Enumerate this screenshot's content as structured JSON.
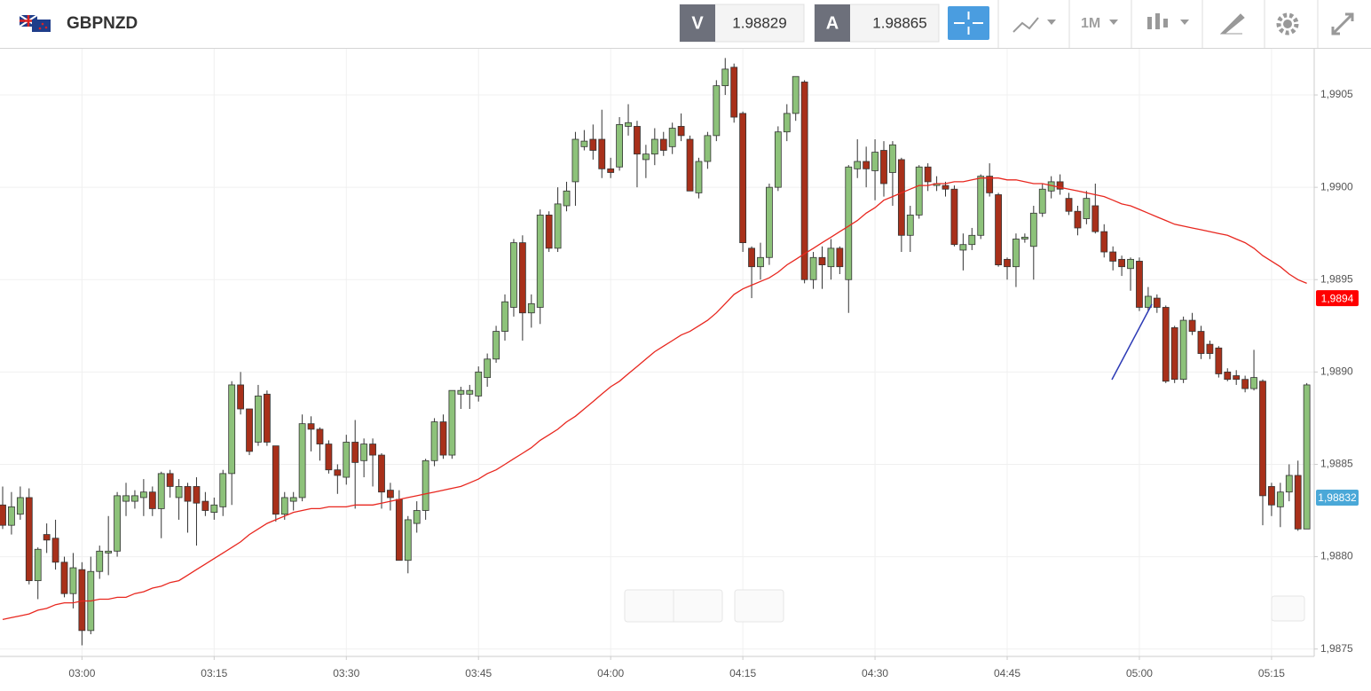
{
  "header": {
    "symbol": "GBPNZD",
    "bid_label": "V",
    "bid": 1.98829,
    "ask_label": "A",
    "ask": 1.98865,
    "timeframe": "1M"
  },
  "chart_data": {
    "type": "candlestick",
    "up_color": "#8dc27a",
    "down_color": "#a8301a",
    "grid": true,
    "ylim": [
      1.98746,
      1.99075
    ],
    "yticks": [
      {
        "value": 1.9875,
        "label": "1,9875"
      },
      {
        "value": 1.988,
        "label": "1,9880"
      },
      {
        "value": 1.9885,
        "label": "1,9885"
      },
      {
        "value": 1.989,
        "label": "1,9890"
      },
      {
        "value": 1.9895,
        "label": "1,9895"
      },
      {
        "value": 1.99,
        "label": "1,9900"
      },
      {
        "value": 1.9905,
        "label": "1,9905"
      }
    ],
    "categories": [
      null,
      null,
      null,
      null,
      null,
      null,
      null,
      null,
      null,
      "03:00",
      null,
      null,
      null,
      null,
      null,
      null,
      null,
      null,
      null,
      null,
      null,
      null,
      null,
      null,
      "03:15",
      null,
      null,
      null,
      null,
      null,
      null,
      null,
      null,
      null,
      null,
      null,
      null,
      null,
      null,
      "03:30",
      null,
      null,
      null,
      null,
      null,
      null,
      null,
      null,
      null,
      null,
      null,
      null,
      null,
      null,
      "03:45",
      null,
      null,
      null,
      null,
      null,
      null,
      null,
      null,
      null,
      null,
      null,
      null,
      null,
      null,
      "04:00",
      null,
      null,
      null,
      null,
      null,
      null,
      null,
      null,
      null,
      null,
      null,
      null,
      null,
      null,
      "04:15",
      null,
      null,
      null,
      null,
      null,
      null,
      null,
      null,
      null,
      null,
      null,
      null,
      null,
      null,
      "04:30",
      null,
      null,
      null,
      null,
      null,
      null,
      null,
      null,
      null,
      null,
      null,
      null,
      null,
      null,
      "04:45",
      null,
      null,
      null,
      null,
      null,
      null,
      null,
      null,
      null,
      null,
      null,
      null,
      null,
      null,
      "05:00",
      null,
      null,
      null,
      null,
      null,
      null,
      null,
      null,
      null,
      null,
      null,
      null,
      null,
      null,
      "05:15",
      null,
      null,
      null,
      null
    ],
    "open": [
      1.98828,
      1.98817,
      1.98823,
      1.98832,
      1.98787,
      1.98812,
      1.9881,
      1.98797,
      1.9878,
      1.98793,
      1.9876,
      1.98792,
      1.98802,
      1.98803,
      1.9883,
      1.9883,
      1.98832,
      1.98835,
      1.98826,
      1.98845,
      1.98832,
      1.98838,
      1.98838,
      1.9883,
      1.98824,
      1.98827,
      1.98845,
      1.98893,
      1.9888,
      1.98862,
      1.98888,
      1.9886,
      1.98823,
      1.9883,
      1.98832,
      1.98872,
      1.98869,
      1.98861,
      1.98847,
      1.98843,
      1.98862,
      1.98852,
      1.98861,
      1.98855,
      1.98836,
      1.98831,
      1.98798,
      1.98818,
      1.98825,
      1.98852,
      1.98873,
      1.98855,
      1.98888,
      1.98888,
      1.98887,
      1.98897,
      1.98907,
      1.98922,
      1.98935,
      1.9897,
      1.98932,
      1.98935,
      1.98985,
      1.98967,
      1.9899,
      1.99003,
      1.99022,
      1.99026,
      1.99026,
      1.9901,
      1.99011,
      1.99033,
      1.99033,
      1.99015,
      1.99018,
      1.99026,
      1.99022,
      1.99033,
      1.99026,
      1.98997,
      1.99014,
      1.99028,
      1.99055,
      1.99065,
      1.9904,
      1.98967,
      1.98957,
      1.98962,
      1.99,
      1.9903,
      1.9904,
      1.99057,
      1.9895,
      1.98962,
      1.98957,
      1.98967,
      1.9895,
      1.9901,
      1.99014,
      1.99009,
      1.9902,
      1.99008,
      1.99015,
      1.98974,
      1.98985,
      1.99011,
      1.99001,
      1.99001,
      1.98999,
      1.98966,
      1.98969,
      1.98974,
      1.99006,
      1.98996,
      1.98961,
      1.98957,
      1.98972,
      1.98968,
      1.98986,
      1.98998,
      1.99003,
      1.98994,
      1.98987,
      1.98983,
      1.9899,
      1.98976,
      1.98965,
      1.98961,
      1.98956,
      1.9896,
      1.98935,
      1.9894,
      1.98935,
      1.98924,
      1.98896,
      1.98928,
      1.98922,
      1.98915,
      1.98913,
      1.989,
      1.98898,
      1.98896,
      1.98891,
      1.98895,
      1.98838,
      1.98827,
      1.98835,
      1.98844,
      1.98815
    ],
    "high": [
      1.98838,
      1.98835,
      1.98838,
      1.98837,
      1.98805,
      1.98818,
      1.9882,
      1.988,
      1.98802,
      1.98797,
      1.988,
      1.98806,
      1.98822,
      1.98835,
      1.9884,
      1.98836,
      1.98842,
      1.98838,
      1.98846,
      1.98847,
      1.98842,
      1.9884,
      1.98843,
      1.98835,
      1.98832,
      1.98847,
      1.98895,
      1.989,
      1.9888,
      1.98893,
      1.9889,
      1.9886,
      1.98835,
      1.98835,
      1.98877,
      1.98876,
      1.9887,
      1.98863,
      1.9885,
      1.98866,
      1.98874,
      1.98864,
      1.98864,
      1.98856,
      1.9884,
      1.98836,
      1.98822,
      1.9883,
      1.98853,
      1.98875,
      1.98877,
      1.9889,
      1.98892,
      1.98893,
      1.98903,
      1.9891,
      1.98925,
      1.98942,
      1.98972,
      1.98974,
      1.98942,
      1.98988,
      1.98987,
      1.99,
      1.99003,
      1.9903,
      1.99031,
      1.99034,
      1.99042,
      1.99016,
      1.99038,
      1.99045,
      1.99036,
      1.99023,
      1.99032,
      1.9903,
      1.99035,
      1.9904,
      1.99028,
      1.99016,
      1.9903,
      1.99058,
      1.9907,
      1.99067,
      1.99041,
      1.98968,
      1.9897,
      1.99002,
      1.99033,
      1.99045,
      1.9906,
      1.99058,
      1.98965,
      1.98968,
      1.98972,
      1.98968,
      1.99012,
      1.99026,
      1.99022,
      1.99026,
      1.99025,
      1.99025,
      1.99016,
      1.9899,
      1.99012,
      1.99013,
      1.99006,
      1.99003,
      1.99001,
      1.98975,
      1.98978,
      1.99007,
      1.99013,
      1.98997,
      1.98962,
      1.98975,
      1.98975,
      1.9899,
      1.99002,
      1.99006,
      1.99007,
      1.98997,
      1.9899,
      1.98998,
      1.99002,
      1.9898,
      1.98968,
      1.98963,
      1.98962,
      1.98962,
      1.98946,
      1.98942,
      1.98936,
      1.98925,
      1.9893,
      1.98932,
      1.98925,
      1.98917,
      1.98914,
      1.98902,
      1.98901,
      1.98898,
      1.98912,
      1.98896,
      1.9884,
      1.9884,
      1.9885,
      1.98852,
      1.98894
    ],
    "low": [
      1.98815,
      1.98812,
      1.9882,
      1.98785,
      1.98777,
      1.98802,
      1.98793,
      1.98778,
      1.98772,
      1.98752,
      1.98758,
      1.98788,
      1.9879,
      1.988,
      1.98822,
      1.98826,
      1.98822,
      1.98822,
      1.9881,
      1.98832,
      1.9882,
      1.98813,
      1.98806,
      1.98822,
      1.9882,
      1.98822,
      1.98828,
      1.98877,
      1.98855,
      1.9886,
      1.9886,
      1.98819,
      1.9882,
      1.98825,
      1.9883,
      1.98857,
      1.98852,
      1.98845,
      1.98834,
      1.98839,
      1.98826,
      1.98843,
      1.98838,
      1.98826,
      1.98825,
      1.98798,
      1.98791,
      1.98813,
      1.9882,
      1.98849,
      1.98853,
      1.98853,
      1.9888,
      1.9888,
      1.98884,
      1.98892,
      1.98905,
      1.98917,
      1.9893,
      1.98917,
      1.98924,
      1.98926,
      1.98965,
      1.98965,
      1.98987,
      1.9899,
      1.9902,
      1.99015,
      1.99005,
      1.99005,
      1.99009,
      1.99028,
      1.99,
      1.99005,
      1.99012,
      1.99017,
      1.99018,
      1.99025,
      1.98998,
      1.98994,
      1.9901,
      1.99025,
      1.9905,
      1.99035,
      1.98965,
      1.9894,
      1.9895,
      1.98958,
      1.98998,
      1.99025,
      1.99036,
      1.98948,
      1.98945,
      1.98945,
      1.9895,
      1.98953,
      1.98932,
      1.99005,
      1.99,
      1.98993,
      1.98995,
      1.9899,
      1.98965,
      1.98965,
      1.98983,
      1.98998,
      1.98998,
      1.98995,
      1.98968,
      1.98955,
      1.98966,
      1.98972,
      1.98995,
      1.98957,
      1.9895,
      1.98946,
      1.9897,
      1.9895,
      1.98984,
      1.98994,
      1.98996,
      1.98985,
      1.98974,
      1.9898,
      1.98975,
      1.98962,
      1.98955,
      1.98952,
      1.98944,
      1.98933,
      1.98933,
      1.98932,
      1.98894,
      1.98894,
      1.98894,
      1.9892,
      1.98907,
      1.98907,
      1.98897,
      1.98895,
      1.98893,
      1.98889,
      1.9889,
      1.98817,
      1.98822,
      1.98816,
      1.9883,
      1.98814,
      1.98815
    ],
    "close": [
      1.98817,
      1.98827,
      1.98832,
      1.98787,
      1.98804,
      1.98809,
      1.98797,
      1.9878,
      1.98794,
      1.9876,
      1.98792,
      1.98803,
      1.98803,
      1.98833,
      1.98833,
      1.98833,
      1.98835,
      1.98826,
      1.98845,
      1.98838,
      1.98838,
      1.9883,
      1.98829,
      1.98825,
      1.98828,
      1.98845,
      1.98893,
      1.9888,
      1.98857,
      1.98887,
      1.98862,
      1.98823,
      1.98832,
      1.98832,
      1.98872,
      1.98869,
      1.98861,
      1.98847,
      1.98844,
      1.98862,
      1.98851,
      1.98861,
      1.98855,
      1.98835,
      1.98832,
      1.98798,
      1.9882,
      1.98825,
      1.98852,
      1.98873,
      1.98855,
      1.9889,
      1.9889,
      1.9889,
      1.989,
      1.98907,
      1.98922,
      1.98938,
      1.9897,
      1.98932,
      1.98937,
      1.98985,
      1.98967,
      1.98991,
      1.98998,
      1.99026,
      1.99025,
      1.9902,
      1.9901,
      1.99008,
      1.99034,
      1.99035,
      1.99018,
      1.99018,
      1.99026,
      1.9902,
      1.99032,
      1.99028,
      1.98998,
      1.99014,
      1.99028,
      1.99055,
      1.99064,
      1.99038,
      1.9897,
      1.98957,
      1.98962,
      1.99,
      1.9903,
      1.9904,
      1.9906,
      1.9895,
      1.98962,
      1.98958,
      1.98967,
      1.98957,
      1.99011,
      1.99014,
      1.9901,
      1.99019,
      1.99002,
      1.99023,
      1.98974,
      1.98985,
      1.99011,
      1.99003,
      1.99002,
      1.98999,
      1.98969,
      1.98969,
      1.98974,
      1.99006,
      1.98997,
      1.98958,
      1.98957,
      1.98972,
      1.98973,
      1.98986,
      1.98999,
      1.99003,
      1.98999,
      1.98987,
      1.98978,
      1.98994,
      1.98976,
      1.98965,
      1.9896,
      1.98957,
      1.98961,
      1.98935,
      1.98941,
      1.98935,
      1.98895,
      1.98896,
      1.98928,
      1.98922,
      1.9891,
      1.9891,
      1.98899,
      1.98896,
      1.98896,
      1.98891,
      1.98897,
      1.98833,
      1.98828,
      1.98835,
      1.98844,
      1.98815,
      1.98893
    ],
    "moving_average": {
      "color": "#e8271f",
      "values": [
        1.98766,
        1.98767,
        1.98768,
        1.98769,
        1.98771,
        1.98772,
        1.98774,
        1.98775,
        1.98775,
        1.98776,
        1.98776,
        1.98777,
        1.98777,
        1.98778,
        1.98778,
        1.9878,
        1.98781,
        1.98783,
        1.98784,
        1.98786,
        1.98787,
        1.9879,
        1.98793,
        1.98796,
        1.98799,
        1.98802,
        1.98805,
        1.98808,
        1.98812,
        1.98815,
        1.98818,
        1.9882,
        1.98822,
        1.98824,
        1.98825,
        1.98826,
        1.98826,
        1.98827,
        1.98827,
        1.98827,
        1.98828,
        1.98828,
        1.98828,
        1.98829,
        1.9883,
        1.98831,
        1.98832,
        1.98833,
        1.98834,
        1.98835,
        1.98836,
        1.98837,
        1.98838,
        1.9884,
        1.98842,
        1.98845,
        1.98847,
        1.9885,
        1.98853,
        1.98856,
        1.98859,
        1.98863,
        1.98866,
        1.98869,
        1.98873,
        1.98876,
        1.9888,
        1.98884,
        1.98888,
        1.98892,
        1.98895,
        1.98899,
        1.98903,
        1.98907,
        1.98911,
        1.98914,
        1.98917,
        1.9892,
        1.98922,
        1.98925,
        1.98928,
        1.98932,
        1.98937,
        1.98942,
        1.98945,
        1.98947,
        1.98949,
        1.98951,
        1.98954,
        1.98958,
        1.98961,
        1.98964,
        1.98967,
        1.9897,
        1.98973,
        1.98976,
        1.98979,
        1.98982,
        1.98986,
        1.98989,
        1.98993,
        1.98995,
        1.98997,
        1.98999,
        1.99001,
        1.99001,
        1.99002,
        1.99002,
        1.99003,
        1.99003,
        1.99004,
        1.99005,
        1.99005,
        1.99005,
        1.99004,
        1.99004,
        1.99003,
        1.99002,
        1.99002,
        1.99001,
        1.99,
        1.98999,
        1.98998,
        1.98997,
        1.98996,
        1.98995,
        1.98993,
        1.98991,
        1.9899,
        1.98988,
        1.98986,
        1.98984,
        1.98982,
        1.9898,
        1.98979,
        1.98978,
        1.98977,
        1.98976,
        1.98975,
        1.98974,
        1.98972,
        1.9897,
        1.98967,
        1.98963,
        1.9896,
        1.98957,
        1.98953,
        1.9895,
        1.98948
      ]
    },
    "price_markers": [
      {
        "value": 1.9894,
        "label": "1,9894",
        "color": "#ff0000"
      },
      {
        "value": 1.98832,
        "label": "1,98832",
        "color": "#4aa8d8"
      }
    ]
  }
}
